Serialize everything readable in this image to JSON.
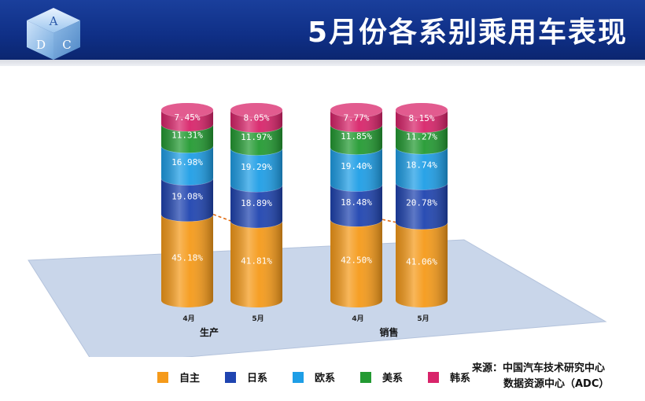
{
  "header": {
    "title": "5月份各系别乘用车表现"
  },
  "logo": {
    "letters": [
      "A",
      "D",
      "C"
    ]
  },
  "chart_data": {
    "type": "bar",
    "stacked": true,
    "unit": "%",
    "groups": [
      {
        "name": "生产",
        "categories": [
          "4月",
          "5月"
        ]
      },
      {
        "name": "销售",
        "categories": [
          "4月",
          "5月"
        ]
      }
    ],
    "categories": [
      "4月",
      "5月",
      "4月",
      "5月"
    ],
    "series": [
      {
        "name": "自主",
        "color": "#f59a1a",
        "values": [
          45.18,
          41.81,
          42.5,
          41.06
        ]
      },
      {
        "name": "日系",
        "color": "#1f44b0",
        "values": [
          19.08,
          18.89,
          18.48,
          20.78
        ]
      },
      {
        "name": "欧系",
        "color": "#1e9ee6",
        "values": [
          16.98,
          19.29,
          19.4,
          18.74
        ]
      },
      {
        "name": "美系",
        "color": "#239a32",
        "values": [
          11.31,
          11.97,
          11.85,
          11.27
        ]
      },
      {
        "name": "韩系",
        "color": "#d8246a",
        "values": [
          7.45,
          8.05,
          7.77,
          8.15
        ]
      }
    ],
    "data_labels": [
      [
        "45.18%",
        "41.81%",
        "42.50%",
        "41.06%"
      ],
      [
        "19.08%",
        "18.89%",
        "18.48%",
        "20.78%"
      ],
      [
        "16.98%",
        "19.29%",
        "19.40%",
        "18.74%"
      ],
      [
        "11.31%",
        "11.97%",
        "11.85%",
        "11.27%"
      ],
      [
        "7.45%",
        "8.05%",
        "7.77%",
        "8.15%"
      ]
    ],
    "legend_position": "bottom"
  },
  "legend": [
    {
      "label": "自主",
      "color": "#f59a1a"
    },
    {
      "label": "日系",
      "color": "#1f44b0"
    },
    {
      "label": "欧系",
      "color": "#1e9ee6"
    },
    {
      "label": "美系",
      "color": "#239a32"
    },
    {
      "label": "韩系",
      "color": "#d8246a"
    }
  ],
  "source": {
    "line1": "来源：中国汽车技术研究中心",
    "line2": "数据资源中心（ADC）"
  }
}
